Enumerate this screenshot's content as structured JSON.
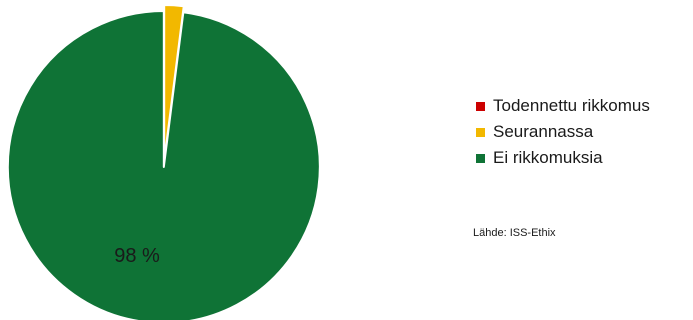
{
  "chart_data": {
    "type": "pie",
    "categories": [
      "Todennettu rikkomus",
      "Seurannassa",
      "Ei rikkomuksia"
    ],
    "values": [
      0,
      2,
      98
    ],
    "colors": [
      "#cc0000",
      "#f2b800",
      "#0f7336"
    ],
    "data_labels": [
      "",
      "",
      "98 %"
    ],
    "legend_position": "right",
    "start_angle_deg": 0,
    "direction": "clockwise",
    "exploded": true
  },
  "legend": {
    "items": [
      {
        "label": "Todennettu rikkomus",
        "color": "#cc0000"
      },
      {
        "label": "Seurannassa",
        "color": "#f2b800"
      },
      {
        "label": "Ei rikkomuksia",
        "color": "#0f7336"
      }
    ]
  },
  "source": {
    "text": "Lähde: ISS-Ethix"
  }
}
